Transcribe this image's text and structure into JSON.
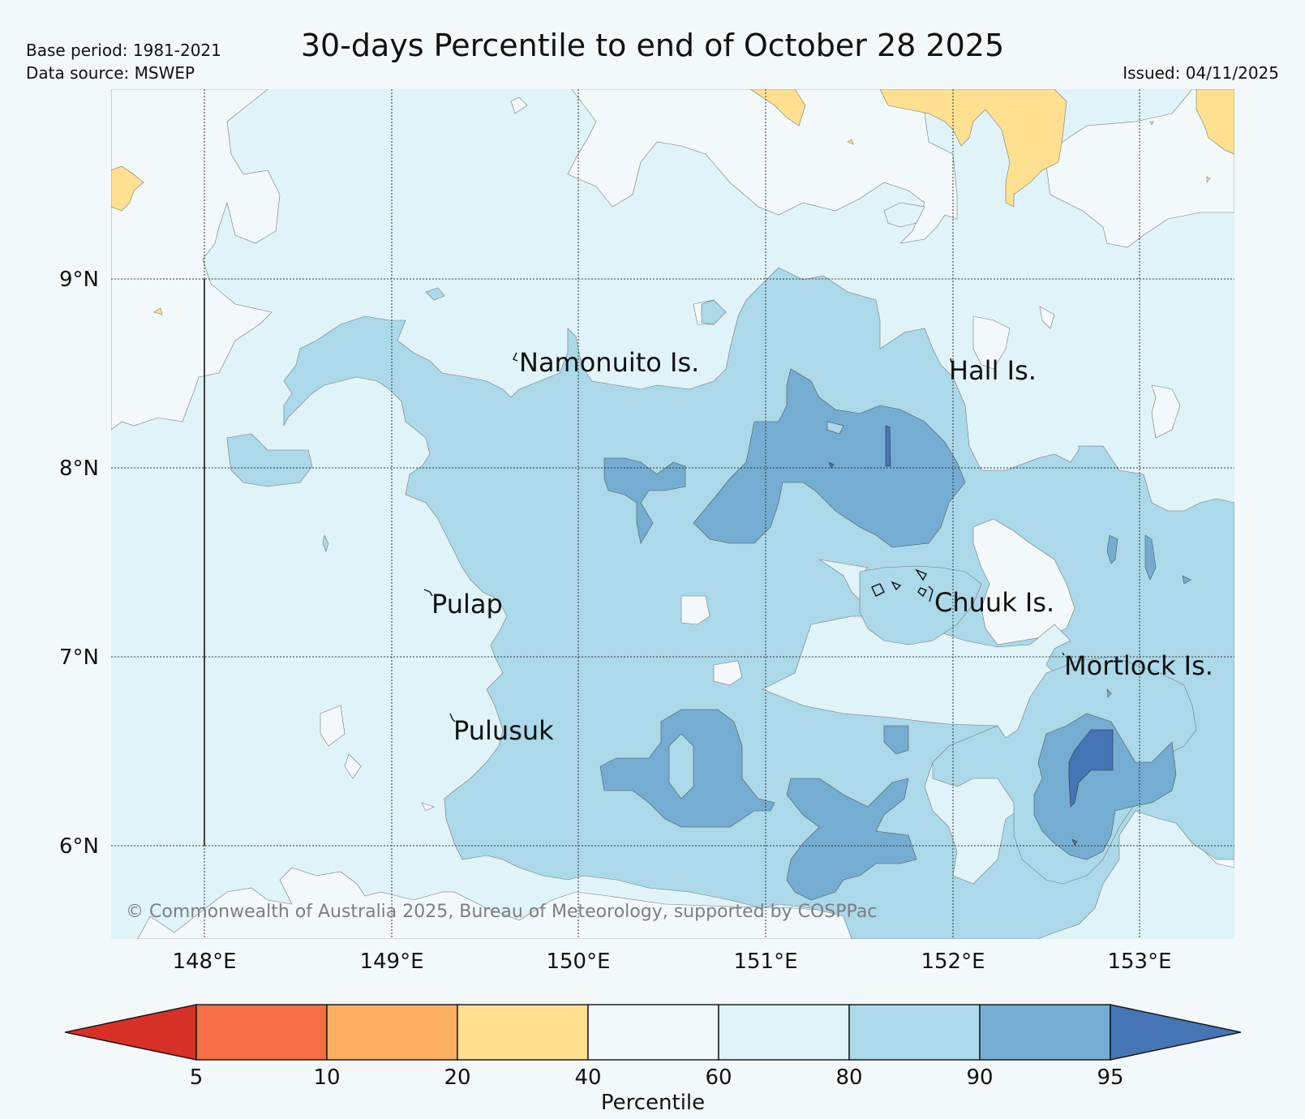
{
  "header": {
    "title": "30-days Percentile to end of October 28 2025",
    "base_period": "Base period: 1981-2021",
    "data_source": "Data source: MSWEP",
    "issued": "Issued: 04/11/2025"
  },
  "map": {
    "lon_range": [
      147.5,
      153.5
    ],
    "lat_range": [
      5.5,
      10.0
    ],
    "lon_ticks": [
      "148°E",
      "149°E",
      "150°E",
      "151°E",
      "152°E",
      "153°E"
    ],
    "lat_ticks": [
      "9°N",
      "8°N",
      "7°N",
      "6°N"
    ],
    "places": [
      {
        "name": "Namonuito Is.",
        "lon": 149.67,
        "lat": 8.55
      },
      {
        "name": "Hall Is.",
        "lon": 151.98,
        "lat": 8.5
      },
      {
        "name": "Pulap",
        "lon": 149.2,
        "lat": 7.3
      },
      {
        "name": "Chuuk Is.",
        "lon": 151.85,
        "lat": 7.35
      },
      {
        "name": "Mortlock Is.",
        "lon": 152.6,
        "lat": 7.0
      },
      {
        "name": "Pulusuk",
        "lon": 149.33,
        "lat": 6.65
      }
    ],
    "copyright": "© Commonwealth of Australia 2025, Bureau of Meteorology, supported by COSPPac"
  },
  "colorbar": {
    "title": "Percentile",
    "ticks": [
      "5",
      "10",
      "20",
      "40",
      "60",
      "80",
      "90",
      "95"
    ],
    "colors": {
      "below_5": "#d73027",
      "5_10": "#f46d43",
      "10_20": "#fdae61",
      "20_40": "#fee090",
      "40_60": "#f3f9fb",
      "60_80": "#e0f3f8",
      "80_90": "#abd9e9",
      "90_95": "#74add1",
      "above_95": "#4575b4"
    }
  }
}
